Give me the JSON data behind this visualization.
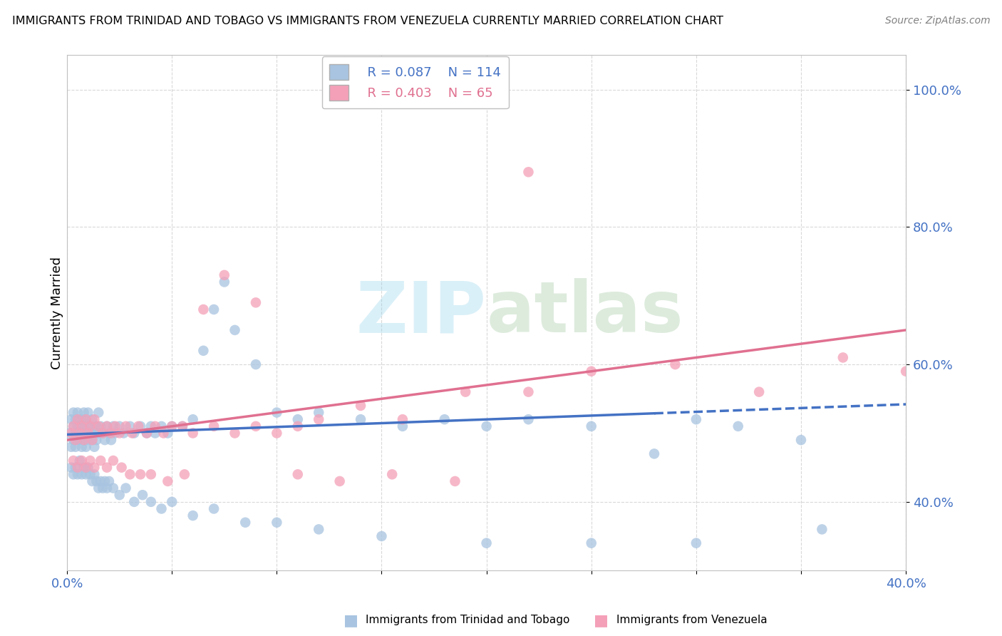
{
  "title": "IMMIGRANTS FROM TRINIDAD AND TOBAGO VS IMMIGRANTS FROM VENEZUELA CURRENTLY MARRIED CORRELATION CHART",
  "source": "Source: ZipAtlas.com",
  "ylabel": "Currently Married",
  "yticks_labels": [
    "40.0%",
    "60.0%",
    "80.0%",
    "100.0%"
  ],
  "ytick_vals": [
    0.4,
    0.6,
    0.8,
    1.0
  ],
  "xlim": [
    0.0,
    0.4
  ],
  "ylim": [
    0.3,
    1.05
  ],
  "legend1_r": "0.087",
  "legend1_n": "114",
  "legend2_r": "0.403",
  "legend2_n": "65",
  "color_blue": "#a8c4e0",
  "color_pink": "#f4a0b8",
  "color_blue_line": "#4472c4",
  "color_pink_line": "#e07090",
  "watermark_zip": "ZIP",
  "watermark_atlas": "atlas",
  "scatter_blue_x": [
    0.001,
    0.002,
    0.002,
    0.003,
    0.003,
    0.003,
    0.004,
    0.004,
    0.004,
    0.005,
    0.005,
    0.005,
    0.005,
    0.006,
    0.006,
    0.006,
    0.007,
    0.007,
    0.007,
    0.008,
    0.008,
    0.008,
    0.009,
    0.009,
    0.009,
    0.01,
    0.01,
    0.01,
    0.011,
    0.011,
    0.012,
    0.012,
    0.013,
    0.013,
    0.014,
    0.014,
    0.015,
    0.015,
    0.016,
    0.017,
    0.018,
    0.019,
    0.02,
    0.021,
    0.022,
    0.023,
    0.025,
    0.027,
    0.03,
    0.032,
    0.035,
    0.038,
    0.04,
    0.042,
    0.045,
    0.048,
    0.05,
    0.055,
    0.06,
    0.065,
    0.07,
    0.075,
    0.08,
    0.09,
    0.1,
    0.11,
    0.12,
    0.14,
    0.16,
    0.18,
    0.2,
    0.22,
    0.25,
    0.28,
    0.3,
    0.32,
    0.35,
    0.002,
    0.003,
    0.004,
    0.005,
    0.006,
    0.007,
    0.008,
    0.009,
    0.01,
    0.011,
    0.012,
    0.013,
    0.014,
    0.015,
    0.016,
    0.017,
    0.018,
    0.019,
    0.02,
    0.022,
    0.025,
    0.028,
    0.032,
    0.036,
    0.04,
    0.045,
    0.05,
    0.06,
    0.07,
    0.085,
    0.1,
    0.12,
    0.15,
    0.2,
    0.25,
    0.3,
    0.36
  ],
  "scatter_blue_y": [
    0.5,
    0.52,
    0.48,
    0.51,
    0.49,
    0.53,
    0.5,
    0.52,
    0.48,
    0.51,
    0.49,
    0.53,
    0.5,
    0.51,
    0.49,
    0.52,
    0.5,
    0.48,
    0.52,
    0.51,
    0.49,
    0.53,
    0.5,
    0.52,
    0.48,
    0.51,
    0.49,
    0.53,
    0.5,
    0.51,
    0.49,
    0.52,
    0.5,
    0.48,
    0.51,
    0.49,
    0.53,
    0.5,
    0.51,
    0.5,
    0.49,
    0.51,
    0.5,
    0.49,
    0.51,
    0.5,
    0.51,
    0.5,
    0.51,
    0.5,
    0.51,
    0.5,
    0.51,
    0.5,
    0.51,
    0.5,
    0.51,
    0.51,
    0.52,
    0.62,
    0.68,
    0.72,
    0.65,
    0.6,
    0.53,
    0.52,
    0.53,
    0.52,
    0.51,
    0.52,
    0.51,
    0.52,
    0.51,
    0.47,
    0.52,
    0.51,
    0.49,
    0.45,
    0.44,
    0.45,
    0.44,
    0.46,
    0.44,
    0.45,
    0.44,
    0.45,
    0.44,
    0.43,
    0.44,
    0.43,
    0.42,
    0.43,
    0.42,
    0.43,
    0.42,
    0.43,
    0.42,
    0.41,
    0.42,
    0.4,
    0.41,
    0.4,
    0.39,
    0.4,
    0.38,
    0.39,
    0.37,
    0.37,
    0.36,
    0.35,
    0.34,
    0.34,
    0.34,
    0.36
  ],
  "scatter_pink_x": [
    0.002,
    0.003,
    0.004,
    0.005,
    0.006,
    0.007,
    0.008,
    0.009,
    0.01,
    0.011,
    0.012,
    0.013,
    0.015,
    0.017,
    0.019,
    0.021,
    0.023,
    0.025,
    0.028,
    0.031,
    0.034,
    0.038,
    0.042,
    0.046,
    0.05,
    0.055,
    0.06,
    0.07,
    0.08,
    0.09,
    0.1,
    0.11,
    0.12,
    0.14,
    0.16,
    0.19,
    0.22,
    0.25,
    0.29,
    0.33,
    0.37,
    0.4,
    0.003,
    0.005,
    0.007,
    0.009,
    0.011,
    0.013,
    0.016,
    0.019,
    0.022,
    0.026,
    0.03,
    0.035,
    0.04,
    0.048,
    0.056,
    0.065,
    0.075,
    0.09,
    0.11,
    0.13,
    0.155,
    0.185,
    0.22
  ],
  "scatter_pink_y": [
    0.5,
    0.51,
    0.49,
    0.52,
    0.5,
    0.51,
    0.49,
    0.52,
    0.5,
    0.51,
    0.49,
    0.52,
    0.51,
    0.5,
    0.51,
    0.5,
    0.51,
    0.5,
    0.51,
    0.5,
    0.51,
    0.5,
    0.51,
    0.5,
    0.51,
    0.51,
    0.5,
    0.51,
    0.5,
    0.51,
    0.5,
    0.51,
    0.52,
    0.54,
    0.52,
    0.56,
    0.56,
    0.59,
    0.6,
    0.56,
    0.61,
    0.59,
    0.46,
    0.45,
    0.46,
    0.45,
    0.46,
    0.45,
    0.46,
    0.45,
    0.46,
    0.45,
    0.44,
    0.44,
    0.44,
    0.43,
    0.44,
    0.68,
    0.73,
    0.69,
    0.44,
    0.43,
    0.44,
    0.43,
    0.88
  ],
  "blue_line_x0": 0.0,
  "blue_line_x1": 0.4,
  "blue_line_y0": 0.498,
  "blue_line_y1": 0.542,
  "pink_line_x0": 0.0,
  "pink_line_x1": 0.4,
  "pink_line_y0": 0.49,
  "pink_line_y1": 0.65
}
